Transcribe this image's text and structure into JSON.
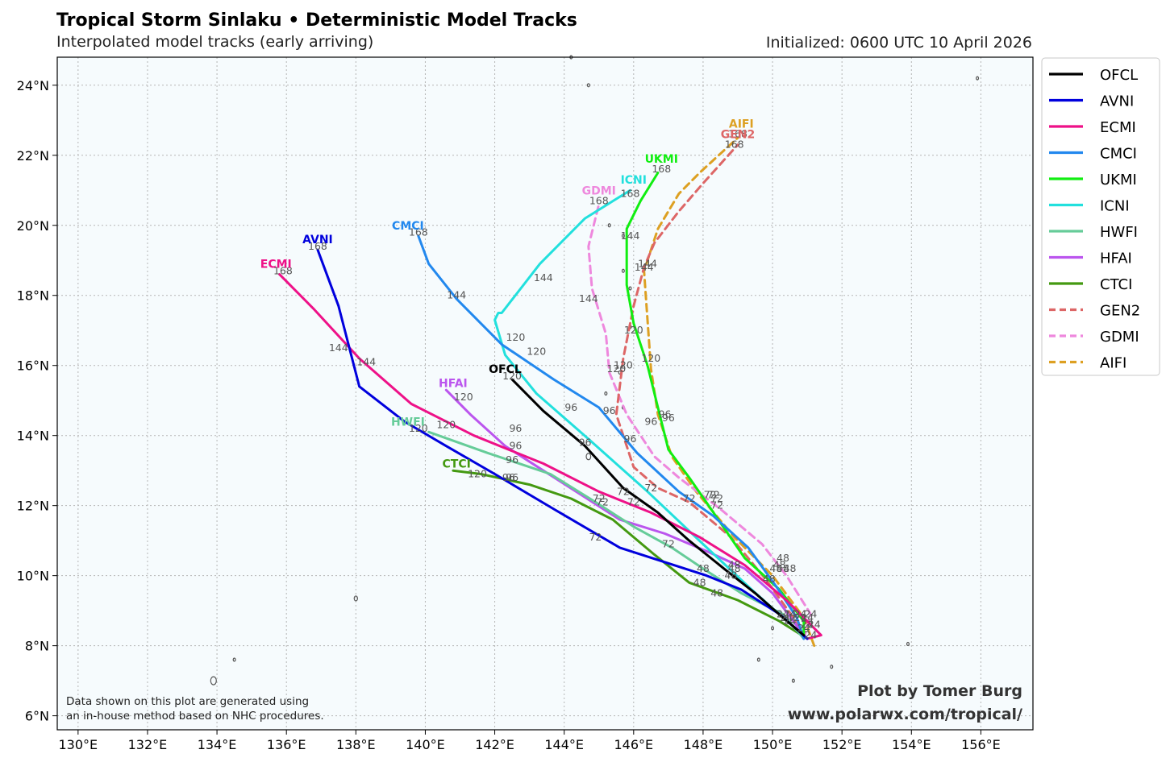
{
  "title": "Tropical Storm Sinlaku • Deterministic Model Tracks",
  "subtitle": "Interpolated model tracks (early arriving)",
  "init_text": "Initialized: 0600 UTC 10 April 2026",
  "note_line1": "Data shown on this plot are generated using",
  "note_line2": "an in-house method based on NHC procedures.",
  "credit_line1": "Plot by Tomer Burg",
  "credit_line2": "www.polarwx.com/tropical/",
  "colors": {
    "background": "#f6fbfd",
    "grid": "#b5b5b5",
    "coast": "#555555",
    "hour_label": "#555555"
  },
  "chart_data": {
    "type": "line",
    "xlim": [
      129.4,
      157.5
    ],
    "ylim": [
      5.6,
      24.8
    ],
    "x_ticks": [
      130,
      132,
      134,
      136,
      138,
      140,
      142,
      144,
      146,
      148,
      150,
      152,
      154,
      156
    ],
    "x_tick_labels": [
      "130°E",
      "132°E",
      "134°E",
      "136°E",
      "138°E",
      "140°E",
      "142°E",
      "144°E",
      "146°E",
      "148°E",
      "150°E",
      "152°E",
      "154°E",
      "156°E"
    ],
    "y_ticks": [
      6,
      8,
      10,
      12,
      14,
      16,
      18,
      20,
      22,
      24
    ],
    "y_tick_labels": [
      "6°N",
      "8°N",
      "10°N",
      "12°N",
      "14°N",
      "16°N",
      "18°N",
      "20°N",
      "22°N",
      "24°N"
    ],
    "models": [
      {
        "name": "OFCL",
        "color": "#000000",
        "dashed": false,
        "lon": [
          150.9,
          150.3,
          149.5,
          148.6,
          147.6,
          146.7,
          145.7,
          144.6,
          143.4,
          142.5
        ],
        "lat": [
          8.3,
          8.8,
          9.5,
          10.2,
          11.0,
          11.8,
          12.5,
          13.7,
          14.7,
          15.6
        ],
        "hour_labels": [
          {
            "h": "24",
            "lon": 150.9,
            "lat": 8.5
          },
          {
            "h": "48",
            "lon": 148.8,
            "lat": 10.0
          },
          {
            "h": "72",
            "lon": 145.7,
            "lat": 12.4
          },
          {
            "h": "96",
            "lon": 144.6,
            "lat": 13.8
          },
          {
            "h": "120",
            "lon": 142.5,
            "lat": 15.7
          }
        ],
        "label_lon": 142.3,
        "label_lat": 15.9
      },
      {
        "name": "AVNI",
        "color": "#0000dd",
        "dashed": false,
        "lon": [
          151.0,
          150.2,
          149.1,
          148.1,
          145.6,
          143.7,
          142.0,
          140.6,
          139.4,
          138.1,
          137.5,
          136.9
        ],
        "lat": [
          8.2,
          8.9,
          9.6,
          10.0,
          10.8,
          11.9,
          12.9,
          13.7,
          14.4,
          15.4,
          17.7,
          19.3
        ],
        "hour_labels": [
          {
            "h": "24",
            "lon": 150.4,
            "lat": 8.8
          },
          {
            "h": "48",
            "lon": 147.9,
            "lat": 9.8
          },
          {
            "h": "72",
            "lon": 144.9,
            "lat": 11.1
          },
          {
            "h": "96",
            "lon": 142.4,
            "lat": 12.8
          },
          {
            "h": "120",
            "lon": 140.6,
            "lat": 14.3
          },
          {
            "h": "144",
            "lon": 138.3,
            "lat": 16.1
          },
          {
            "h": "168",
            "lon": 136.9,
            "lat": 19.4
          }
        ],
        "label_lon": 136.9,
        "label_lat": 19.6
      },
      {
        "name": "ECMI",
        "color": "#ee1188",
        "dashed": false,
        "lon": [
          151.0,
          151.4,
          150.4,
          149.2,
          147.9,
          146.5,
          145.0,
          143.4,
          141.4,
          139.6,
          138.1,
          136.8,
          135.8
        ],
        "lat": [
          8.2,
          8.3,
          9.3,
          10.3,
          11.1,
          11.8,
          12.4,
          13.2,
          14.0,
          14.9,
          16.2,
          17.6,
          18.6
        ],
        "hour_labels": [
          {
            "h": "24",
            "lon": 151.2,
            "lat": 8.6
          },
          {
            "h": "48",
            "lon": 148.9,
            "lat": 10.2
          },
          {
            "h": "72",
            "lon": 146.0,
            "lat": 12.1
          },
          {
            "h": "96",
            "lon": 142.6,
            "lat": 14.2
          },
          {
            "h": "144",
            "lon": 137.5,
            "lat": 16.5
          },
          {
            "h": "168",
            "lon": 135.9,
            "lat": 18.7
          }
        ],
        "label_lon": 135.7,
        "label_lat": 18.9
      },
      {
        "name": "CMCI",
        "color": "#2288ee",
        "dashed": false,
        "lon": [
          150.9,
          150.7,
          150.1,
          149.3,
          148.3,
          147.3,
          146.1,
          145.0,
          143.7,
          142.2,
          140.9,
          140.1,
          139.8
        ],
        "lat": [
          8.2,
          8.8,
          9.7,
          10.8,
          11.7,
          12.4,
          13.5,
          14.8,
          15.6,
          16.6,
          17.9,
          18.9,
          19.7
        ],
        "hour_labels": [
          {
            "h": "24",
            "lon": 150.8,
            "lat": 8.9
          },
          {
            "h": "48",
            "lon": 150.1,
            "lat": 10.2
          },
          {
            "h": "72",
            "lon": 148.2,
            "lat": 12.3
          },
          {
            "h": "96",
            "lon": 145.3,
            "lat": 14.7
          },
          {
            "h": "120",
            "lon": 143.2,
            "lat": 16.4
          },
          {
            "h": "144",
            "lon": 140.9,
            "lat": 18.0
          },
          {
            "h": "168",
            "lon": 139.8,
            "lat": 19.8
          }
        ],
        "label_lon": 139.5,
        "label_lat": 20.0
      },
      {
        "name": "UKMI",
        "color": "#11ee11",
        "dashed": false,
        "lon": [
          150.9,
          150.9,
          150.2,
          149.2,
          148.3,
          147.6,
          147.0,
          146.7,
          146.4,
          146.0,
          145.8,
          145.8,
          145.8,
          146.2,
          146.7
        ],
        "lat": [
          8.3,
          8.7,
          9.6,
          10.5,
          11.8,
          12.8,
          13.6,
          14.8,
          16.0,
          17.2,
          18.3,
          19.7,
          19.9,
          20.7,
          21.5
        ],
        "hour_labels": [
          {
            "h": "24",
            "lon": 151.0,
            "lat": 8.8
          },
          {
            "h": "48",
            "lon": 150.2,
            "lat": 10.3
          },
          {
            "h": "72",
            "lon": 148.4,
            "lat": 12.2
          },
          {
            "h": "96",
            "lon": 147.0,
            "lat": 14.5
          },
          {
            "h": "120",
            "lon": 146.0,
            "lat": 17.0
          },
          {
            "h": "144",
            "lon": 145.9,
            "lat": 19.7
          },
          {
            "h": "168",
            "lon": 146.8,
            "lat": 21.6
          }
        ],
        "label_lon": 146.8,
        "label_lat": 21.9
      },
      {
        "name": "ICNI",
        "color": "#22e0dd",
        "dashed": false,
        "lon": [
          150.9,
          150.3,
          149.4,
          148.0,
          146.4,
          144.7,
          143.2,
          142.3,
          142.0,
          142.1,
          142.2,
          143.3,
          144.6,
          145.9
        ],
        "lat": [
          8.3,
          8.8,
          9.6,
          10.9,
          12.4,
          13.9,
          15.2,
          16.3,
          17.3,
          17.5,
          17.5,
          18.9,
          20.2,
          21.0
        ],
        "hour_labels": [
          {
            "h": "24",
            "lon": 150.3,
            "lat": 8.9
          },
          {
            "h": "48",
            "lon": 149.9,
            "lat": 9.9
          },
          {
            "h": "72",
            "lon": 146.5,
            "lat": 12.5
          },
          {
            "h": "96",
            "lon": 144.2,
            "lat": 14.8
          },
          {
            "h": "120",
            "lon": 142.6,
            "lat": 16.8
          },
          {
            "h": "144",
            "lon": 143.4,
            "lat": 18.5
          },
          {
            "h": "168",
            "lon": 145.9,
            "lat": 20.9
          }
        ],
        "label_lon": 146.0,
        "label_lat": 21.3
      },
      {
        "name": "HWFI",
        "color": "#66cc99",
        "dashed": false,
        "lon": [
          150.9,
          150.3,
          149.1,
          148.0,
          147.1,
          146.0,
          144.9,
          143.6,
          141.8,
          140.1
        ],
        "lat": [
          8.2,
          8.9,
          9.5,
          10.2,
          10.8,
          11.4,
          12.1,
          12.9,
          13.5,
          14.1
        ],
        "hour_labels": [
          {
            "h": "24",
            "lon": 150.5,
            "lat": 8.9
          },
          {
            "h": "48",
            "lon": 148.4,
            "lat": 9.5
          },
          {
            "h": "72",
            "lon": 145.0,
            "lat": 12.2
          },
          {
            "h": "96",
            "lon": 142.5,
            "lat": 13.3
          },
          {
            "h": "120",
            "lon": 139.8,
            "lat": 14.2
          }
        ],
        "label_lon": 139.5,
        "label_lat": 14.4
      },
      {
        "name": "HFAI",
        "color": "#bb55ee",
        "dashed": false,
        "lon": [
          150.9,
          150.6,
          150.0,
          149.2,
          148.1,
          146.9,
          145.6,
          144.5,
          143.4,
          142.3,
          141.3,
          140.6
        ],
        "lat": [
          8.3,
          8.7,
          9.5,
          10.2,
          10.7,
          11.2,
          11.6,
          12.3,
          13.0,
          13.7,
          14.6,
          15.3
        ],
        "hour_labels": [
          {
            "h": "24",
            "lon": 150.8,
            "lat": 8.8
          },
          {
            "h": "48",
            "lon": 148.9,
            "lat": 10.3
          },
          {
            "h": "72",
            "lon": 145.1,
            "lat": 12.1
          },
          {
            "h": "96",
            "lon": 142.6,
            "lat": 13.7
          },
          {
            "h": "120",
            "lon": 141.1,
            "lat": 15.1
          }
        ],
        "label_lon": 140.8,
        "label_lat": 15.5
      },
      {
        "name": "CTCI",
        "color": "#449911",
        "dashed": false,
        "lon": [
          151.0,
          150.2,
          149.0,
          147.6,
          146.6,
          145.4,
          144.2,
          143.0,
          141.6,
          140.8
        ],
        "lat": [
          8.2,
          8.7,
          9.3,
          9.8,
          10.6,
          11.6,
          12.2,
          12.6,
          12.9,
          13.0
        ],
        "hour_labels": [
          {
            "h": "24",
            "lon": 150.5,
            "lat": 8.7
          },
          {
            "h": "48",
            "lon": 148.0,
            "lat": 10.2
          },
          {
            "h": "72",
            "lon": 147.0,
            "lat": 10.9
          },
          {
            "h": "96",
            "lon": 142.5,
            "lat": 12.8
          },
          {
            "h": "120",
            "lon": 141.5,
            "lat": 12.9
          }
        ],
        "label_lon": 140.9,
        "label_lat": 13.2
      },
      {
        "name": "GEN2",
        "color": "#dd6666",
        "dashed": true,
        "lon": [
          150.9,
          150.6,
          149.8,
          148.8,
          147.6,
          146.7,
          146.0,
          145.5,
          145.7,
          146.0,
          146.3,
          146.6,
          147.3,
          148.0,
          149.0
        ],
        "lat": [
          8.2,
          8.8,
          9.9,
          11.1,
          12.1,
          12.5,
          13.1,
          14.6,
          16.2,
          17.7,
          18.8,
          19.5,
          20.4,
          21.2,
          22.3
        ],
        "hour_labels": [
          {
            "h": "24",
            "lon": 151.0,
            "lat": 8.6
          },
          {
            "h": "48",
            "lon": 150.3,
            "lat": 10.2
          },
          {
            "h": "72",
            "lon": 147.6,
            "lat": 12.2
          },
          {
            "h": "96",
            "lon": 145.9,
            "lat": 13.9
          },
          {
            "h": "120",
            "lon": 145.7,
            "lat": 16.0
          },
          {
            "h": "144",
            "lon": 146.3,
            "lat": 18.8
          },
          {
            "h": "168",
            "lon": 148.9,
            "lat": 22.3
          }
        ],
        "label_lon": 149.0,
        "label_lat": 22.6
      },
      {
        "name": "GDMI",
        "color": "#ee88dd",
        "dashed": true,
        "lon": [
          150.9,
          151.1,
          150.4,
          149.7,
          148.5,
          147.3,
          146.6,
          145.8,
          145.3,
          145.2,
          144.8,
          144.7,
          145.0
        ],
        "lat": [
          8.2,
          8.9,
          10.0,
          10.9,
          11.9,
          12.8,
          13.4,
          14.6,
          15.8,
          16.9,
          18.2,
          19.4,
          20.6
        ],
        "hour_labels": [
          {
            "h": "24",
            "lon": 151.1,
            "lat": 8.9
          },
          {
            "h": "48",
            "lon": 150.3,
            "lat": 10.5
          },
          {
            "h": "72",
            "lon": 148.3,
            "lat": 12.3
          },
          {
            "h": "96",
            "lon": 146.5,
            "lat": 14.4
          },
          {
            "h": "120",
            "lon": 145.5,
            "lat": 15.9
          },
          {
            "h": "144",
            "lon": 144.7,
            "lat": 17.9
          },
          {
            "h": "168",
            "lon": 145.0,
            "lat": 20.7
          }
        ],
        "label_lon": 145.0,
        "label_lat": 21.0
      },
      {
        "name": "AIFI",
        "color": "#dda022",
        "dashed": true,
        "lon": [
          151.2,
          150.9,
          150.0,
          148.9,
          147.8,
          147.1,
          146.7,
          146.5,
          146.4,
          146.3,
          146.7,
          147.3,
          147.9,
          149.0
        ],
        "lat": [
          8.0,
          8.8,
          10.0,
          11.1,
          12.4,
          13.4,
          14.6,
          15.9,
          17.3,
          18.7,
          19.9,
          20.9,
          21.5,
          22.5
        ],
        "hour_labels": [
          {
            "h": "24",
            "lon": 151.1,
            "lat": 8.3
          },
          {
            "h": "48",
            "lon": 150.5,
            "lat": 10.2
          },
          {
            "h": "72",
            "lon": 148.4,
            "lat": 12.0
          },
          {
            "h": "96",
            "lon": 146.9,
            "lat": 14.6
          },
          {
            "h": "120",
            "lon": 146.5,
            "lat": 16.2
          },
          {
            "h": "144",
            "lon": 146.4,
            "lat": 18.9
          },
          {
            "h": "168",
            "lon": 149.0,
            "lat": 22.6
          }
        ],
        "label_lon": 149.1,
        "label_lat": 22.9
      }
    ],
    "legend_position": "right-outside-top"
  }
}
